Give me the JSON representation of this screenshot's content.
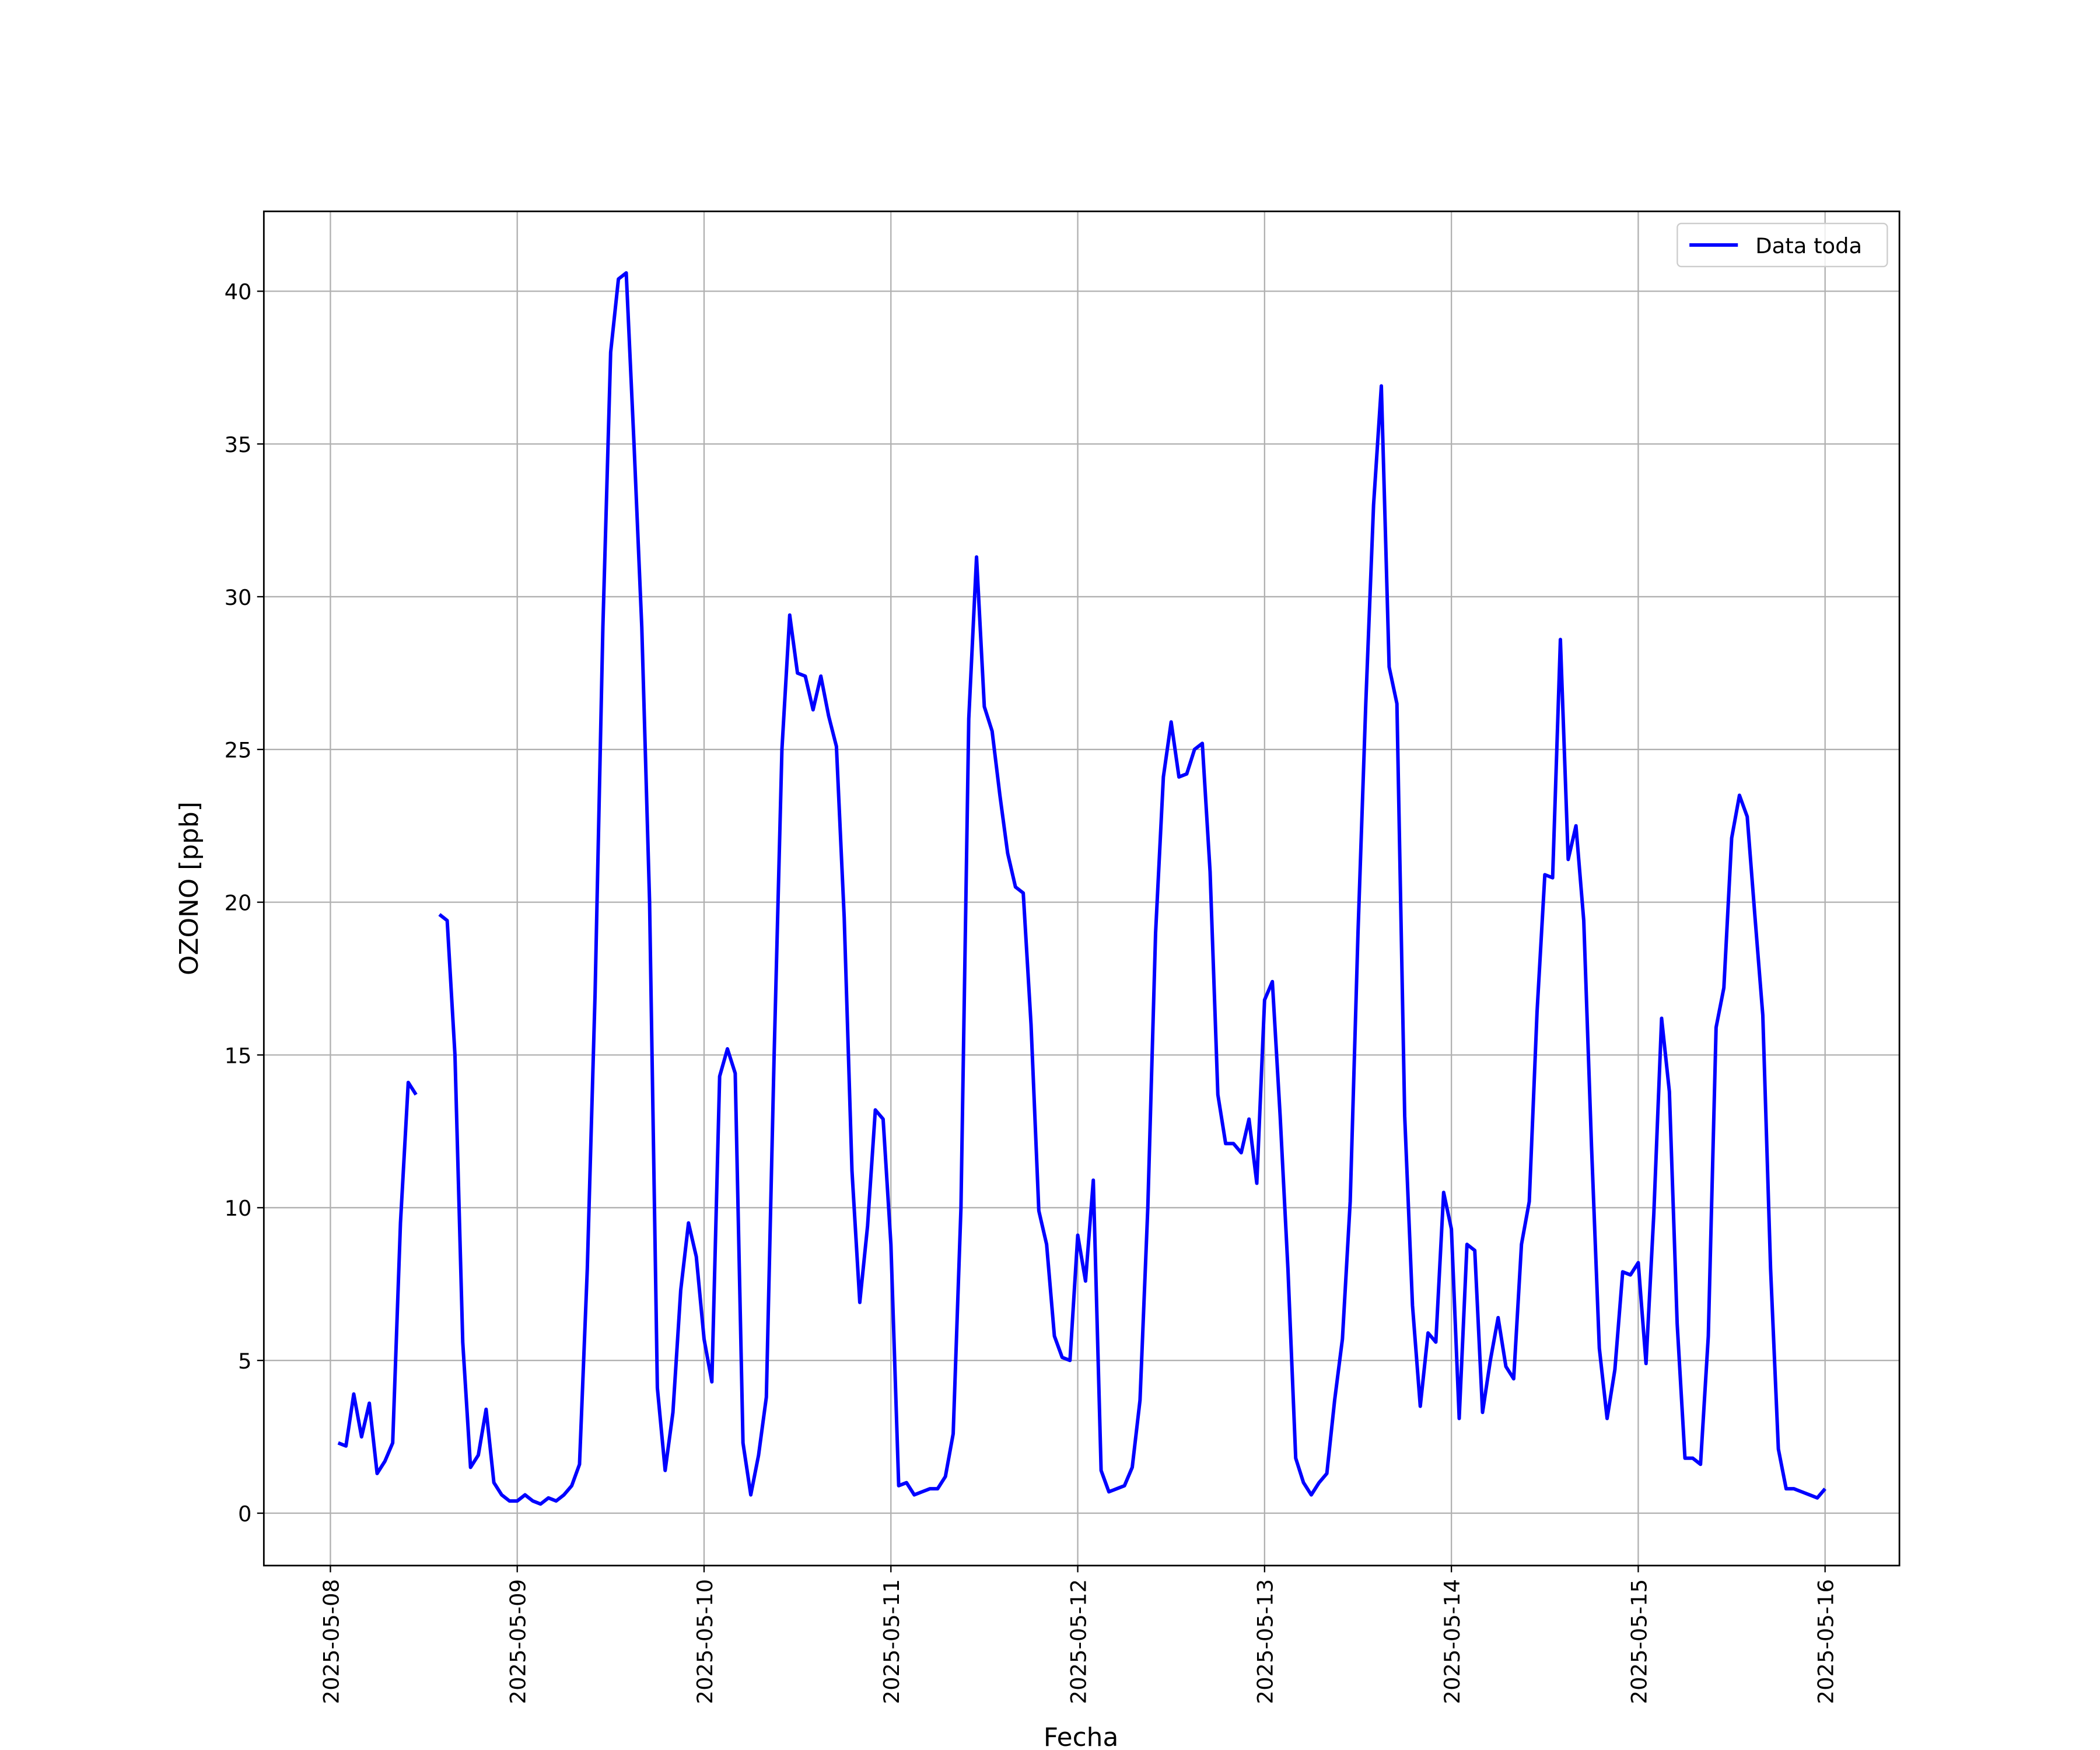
{
  "chart_data": {
    "type": "line",
    "xlabel": "Fecha",
    "ylabel": "OZONO [ppb]",
    "x": [
      "2025-05-08 01:00",
      "2025-05-08 02:00",
      "2025-05-08 03:00",
      "2025-05-08 04:00",
      "2025-05-08 05:00",
      "2025-05-08 06:00",
      "2025-05-08 07:00",
      "2025-05-08 08:00",
      "2025-05-08 09:00",
      "2025-05-08 10:00",
      "2025-05-08 11:00",
      "2025-05-08 12:00",
      "2025-05-08 13:00",
      "2025-05-08 14:00",
      "2025-05-08 15:00",
      "2025-05-08 16:00",
      "2025-05-08 17:00",
      "2025-05-08 18:00",
      "2025-05-08 19:00",
      "2025-05-08 20:00",
      "2025-05-08 21:00",
      "2025-05-08 22:00",
      "2025-05-08 23:00",
      "2025-05-09 00:00",
      "2025-05-09 01:00",
      "2025-05-09 02:00",
      "2025-05-09 03:00",
      "2025-05-09 04:00",
      "2025-05-09 05:00",
      "2025-05-09 06:00",
      "2025-05-09 07:00",
      "2025-05-09 08:00",
      "2025-05-09 09:00",
      "2025-05-09 10:00",
      "2025-05-09 11:00",
      "2025-05-09 12:00",
      "2025-05-09 13:00",
      "2025-05-09 14:00",
      "2025-05-09 15:00",
      "2025-05-09 16:00",
      "2025-05-09 17:00",
      "2025-05-09 18:00",
      "2025-05-09 19:00",
      "2025-05-09 20:00",
      "2025-05-09 21:00",
      "2025-05-09 22:00",
      "2025-05-09 23:00",
      "2025-05-10 00:00",
      "2025-05-10 01:00",
      "2025-05-10 02:00",
      "2025-05-10 03:00",
      "2025-05-10 04:00",
      "2025-05-10 05:00",
      "2025-05-10 06:00",
      "2025-05-10 07:00",
      "2025-05-10 08:00",
      "2025-05-10 09:00",
      "2025-05-10 10:00",
      "2025-05-10 11:00",
      "2025-05-10 12:00",
      "2025-05-10 13:00",
      "2025-05-10 14:00",
      "2025-05-10 15:00",
      "2025-05-10 16:00",
      "2025-05-10 17:00",
      "2025-05-10 18:00",
      "2025-05-10 19:00",
      "2025-05-10 20:00",
      "2025-05-10 21:00",
      "2025-05-10 22:00",
      "2025-05-10 23:00",
      "2025-05-11 00:00",
      "2025-05-11 01:00",
      "2025-05-11 02:00",
      "2025-05-11 03:00",
      "2025-05-11 04:00",
      "2025-05-11 05:00",
      "2025-05-11 06:00",
      "2025-05-11 07:00",
      "2025-05-11 08:00",
      "2025-05-11 09:00",
      "2025-05-11 10:00",
      "2025-05-11 11:00",
      "2025-05-11 12:00",
      "2025-05-11 13:00",
      "2025-05-11 14:00",
      "2025-05-11 15:00",
      "2025-05-11 16:00",
      "2025-05-11 17:00",
      "2025-05-11 18:00",
      "2025-05-11 19:00",
      "2025-05-11 20:00",
      "2025-05-11 21:00",
      "2025-05-11 22:00",
      "2025-05-11 23:00",
      "2025-05-12 00:00",
      "2025-05-12 01:00",
      "2025-05-12 02:00",
      "2025-05-12 03:00",
      "2025-05-12 04:00",
      "2025-05-12 05:00",
      "2025-05-12 06:00",
      "2025-05-12 07:00",
      "2025-05-12 08:00",
      "2025-05-12 09:00",
      "2025-05-12 10:00",
      "2025-05-12 11:00",
      "2025-05-12 12:00",
      "2025-05-12 13:00",
      "2025-05-12 14:00",
      "2025-05-12 15:00",
      "2025-05-12 16:00",
      "2025-05-12 17:00",
      "2025-05-12 18:00",
      "2025-05-12 19:00",
      "2025-05-12 20:00",
      "2025-05-12 21:00",
      "2025-05-12 22:00",
      "2025-05-12 23:00",
      "2025-05-13 00:00",
      "2025-05-13 01:00",
      "2025-05-13 02:00",
      "2025-05-13 03:00",
      "2025-05-13 04:00",
      "2025-05-13 05:00",
      "2025-05-13 06:00",
      "2025-05-13 07:00",
      "2025-05-13 08:00",
      "2025-05-13 09:00",
      "2025-05-13 10:00",
      "2025-05-13 11:00",
      "2025-05-13 12:00",
      "2025-05-13 13:00",
      "2025-05-13 14:00",
      "2025-05-13 15:00",
      "2025-05-13 16:00",
      "2025-05-13 17:00",
      "2025-05-13 18:00",
      "2025-05-13 19:00",
      "2025-05-13 20:00",
      "2025-05-13 21:00",
      "2025-05-13 22:00",
      "2025-05-13 23:00",
      "2025-05-14 00:00",
      "2025-05-14 01:00",
      "2025-05-14 02:00",
      "2025-05-14 03:00",
      "2025-05-14 04:00",
      "2025-05-14 05:00",
      "2025-05-14 06:00",
      "2025-05-14 07:00",
      "2025-05-14 08:00",
      "2025-05-14 09:00",
      "2025-05-14 10:00",
      "2025-05-14 11:00",
      "2025-05-14 12:00",
      "2025-05-14 13:00",
      "2025-05-14 14:00",
      "2025-05-14 15:00",
      "2025-05-14 16:00",
      "2025-05-14 17:00",
      "2025-05-14 18:00",
      "2025-05-14 19:00",
      "2025-05-14 20:00",
      "2025-05-14 21:00",
      "2025-05-14 22:00",
      "2025-05-14 23:00",
      "2025-05-15 00:00",
      "2025-05-15 01:00",
      "2025-05-15 02:00",
      "2025-05-15 03:00",
      "2025-05-15 04:00",
      "2025-05-15 05:00",
      "2025-05-15 06:00",
      "2025-05-15 07:00",
      "2025-05-15 08:00",
      "2025-05-15 09:00",
      "2025-05-15 10:00",
      "2025-05-15 11:00",
      "2025-05-15 12:00",
      "2025-05-15 13:00",
      "2025-05-15 14:00",
      "2025-05-15 15:00",
      "2025-05-15 16:00",
      "2025-05-15 17:00",
      "2025-05-15 18:00",
      "2025-05-15 19:00",
      "2025-05-15 20:00",
      "2025-05-15 21:00",
      "2025-05-15 22:00",
      "2025-05-15 23:00",
      "2025-05-16 00:00"
    ],
    "series": [
      {
        "name": "Data toda",
        "color": "#0000ff",
        "values": [
          2.3,
          2.2,
          3.9,
          2.5,
          3.6,
          1.3,
          1.7,
          2.3,
          9.5,
          14.1,
          13.7,
          null,
          null,
          19.6,
          19.4,
          15.0,
          5.6,
          1.5,
          1.9,
          3.4,
          1.0,
          0.6,
          0.4,
          0.4,
          0.6,
          0.4,
          0.3,
          0.5,
          0.4,
          0.6,
          0.9,
          1.6,
          8.0,
          17.0,
          29.0,
          38.0,
          40.4,
          40.6,
          35.0,
          29.0,
          20.0,
          4.1,
          1.4,
          3.3,
          7.3,
          9.5,
          8.4,
          5.7,
          4.3,
          14.3,
          15.2,
          14.4,
          2.3,
          0.6,
          1.9,
          3.8,
          15.0,
          25.0,
          29.4,
          27.5,
          27.4,
          26.3,
          27.4,
          26.1,
          25.1,
          19.5,
          11.2,
          6.9,
          9.4,
          13.2,
          12.9,
          8.8,
          0.9,
          1.0,
          0.6,
          0.7,
          0.8,
          0.8,
          1.2,
          2.6,
          10.0,
          26.0,
          31.3,
          26.4,
          25.6,
          23.5,
          21.6,
          20.5,
          20.3,
          16.0,
          9.9,
          8.8,
          5.8,
          5.1,
          5.0,
          9.1,
          7.6,
          10.9,
          1.4,
          0.7,
          0.8,
          0.9,
          1.5,
          3.7,
          10.0,
          19.0,
          24.1,
          25.9,
          24.1,
          24.2,
          25.0,
          25.2,
          21.0,
          13.7,
          12.1,
          12.1,
          11.8,
          12.9,
          10.8,
          16.8,
          17.4,
          13.0,
          8.0,
          1.8,
          1.0,
          0.6,
          1.0,
          1.3,
          3.7,
          5.7,
          10.2,
          19.0,
          26.5,
          33.0,
          36.9,
          27.7,
          26.5,
          13.0,
          6.8,
          3.5,
          5.9,
          5.6,
          10.5,
          9.3,
          3.1,
          8.8,
          8.6,
          3.3,
          5.0,
          6.4,
          4.8,
          4.4,
          8.8,
          10.2,
          16.4,
          20.9,
          20.8,
          28.6,
          21.4,
          22.5,
          19.4,
          12.0,
          5.4,
          3.1,
          4.7,
          7.9,
          7.8,
          8.2,
          4.9,
          9.8,
          16.2,
          13.8,
          6.2,
          1.8,
          1.8,
          1.6,
          5.8,
          15.9,
          17.2,
          22.1,
          23.5,
          22.8,
          19.5,
          16.3,
          8.0,
          2.1,
          0.8,
          0.8,
          0.7,
          0.6,
          0.5,
          0.8
        ]
      }
    ],
    "xlim": [
      "2025-05-07 15:27",
      "2025-05-16 09:33"
    ],
    "xticks": [
      "2025-05-08",
      "2025-05-09",
      "2025-05-10",
      "2025-05-11",
      "2025-05-12",
      "2025-05-13",
      "2025-05-14",
      "2025-05-15",
      "2025-05-16"
    ],
    "ylim": [
      -1.715,
      42.615
    ],
    "yticks": [
      0,
      5,
      10,
      15,
      20,
      25,
      30,
      35,
      40
    ],
    "grid": true,
    "legend": "upper right"
  }
}
